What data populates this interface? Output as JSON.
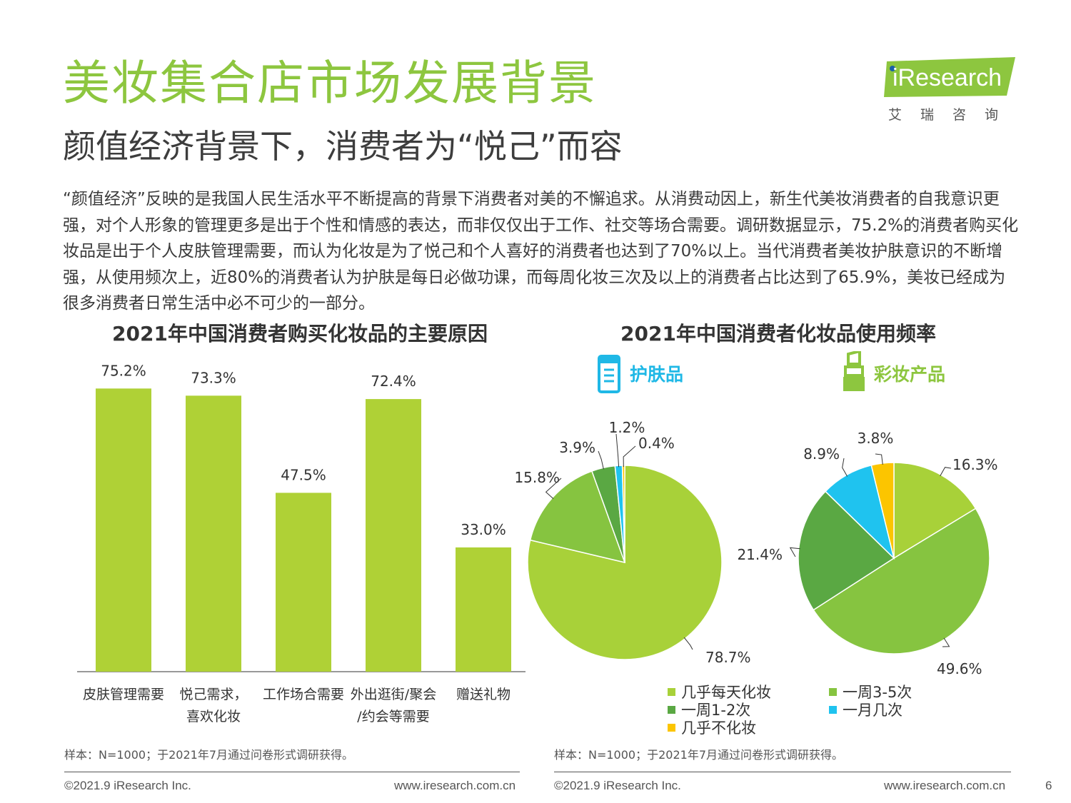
{
  "page": {
    "title": "美妆集合店市场发展背景",
    "subtitle": "颜值经济背景下，消费者为“悦己”而容",
    "paragraph": "“颜值经济”反映的是我国人民生活水平不断提高的背景下消费者对美的不懈追求。从消费动因上，新生代美妆消费者的自我意识更强，对个人形象的管理更多是出于个性和情感的表达，而非仅仅出于工作、社交等场合需要。调研数据显示，75.2%的消费者购买化妆品是出于个人皮肤管理需要，而认为化妆是为了悦己和个人喜好的消费者也达到了70%以上。当代消费者美妆护肤意识的不断增强，从使用频次上，近80%的消费者认为护肤是每日必做功课，而每周化妆三次及以上的消费者占比达到了65.9%，美妆已经成为很多消费者日常生活中必不可少的一部分。",
    "page_number": "6"
  },
  "logo": {
    "name": "iResearch",
    "sub": "艾瑞咨询"
  },
  "left": {
    "title": "2021年中国消费者购买化妆品的主要原因",
    "footnote": "样本：N=1000；于2021年7月通过问卷形式调研获得。",
    "copyright": "©2021.9 iResearch Inc.",
    "url": "www.iresearch.com.cn"
  },
  "right": {
    "title": "2021年中国消费者化妆品使用频率",
    "skincare_label": "护肤品",
    "makeup_label": "彩妆产品",
    "footnote": "样本：N=1000；于2021年7月通过问卷形式调研获得。",
    "copyright": "©2021.9 iResearch Inc.",
    "url": "www.iresearch.com.cn"
  },
  "colors": {
    "title_green": "#8dc63f",
    "bar": "#afd136",
    "skincare_icon": "#1fb8e6",
    "makeup_icon": "#8dc63f"
  },
  "chart_data": [
    {
      "type": "bar",
      "title": "2021年中国消费者购买化妆品的主要原因",
      "categories": [
        [
          "皮肤管理需要"
        ],
        [
          "悦己需求，",
          "喜欢化妆"
        ],
        [
          "工作场合需要"
        ],
        [
          "外出逛街/聚会",
          "/约会等需要"
        ],
        [
          "赠送礼物"
        ]
      ],
      "values": [
        75.2,
        73.3,
        47.5,
        72.4,
        33.0
      ],
      "value_labels": [
        "75.2%",
        "73.3%",
        "47.5%",
        "72.4%",
        "33.0%"
      ],
      "ylim": [
        0,
        80
      ],
      "grid": false
    },
    {
      "type": "pie",
      "name": "护肤品",
      "slices": [
        {
          "label": "几乎每天化妆",
          "value": 78.7,
          "value_label": "78.7%",
          "color": "#a8d139"
        },
        {
          "label": "一周3-5次",
          "value": 15.8,
          "value_label": "15.8%",
          "color": "#86c440"
        },
        {
          "label": "一周1-2次",
          "value": 3.9,
          "value_label": "3.9%",
          "color": "#5aa843"
        },
        {
          "label": "一月几次",
          "value": 1.2,
          "value_label": "1.2%",
          "color": "#1fc3ef"
        },
        {
          "label": "几乎不化妆",
          "value": 0.4,
          "value_label": "0.4%",
          "color": "#fcc500"
        }
      ]
    },
    {
      "type": "pie",
      "name": "彩妆产品",
      "slices": [
        {
          "label": "几乎每天化妆",
          "value": 16.3,
          "value_label": "16.3%",
          "color": "#a8d139"
        },
        {
          "label": "一周3-5次",
          "value": 49.6,
          "value_label": "49.6%",
          "color": "#86c440"
        },
        {
          "label": "一周1-2次",
          "value": 21.4,
          "value_label": "21.4%",
          "color": "#5aa843"
        },
        {
          "label": "一月几次",
          "value": 8.9,
          "value_label": "8.9%",
          "color": "#1fc3ef"
        },
        {
          "label": "几乎不化妆",
          "value": 3.8,
          "value_label": "3.8%",
          "color": "#fcc500"
        }
      ],
      "legend": [
        "几乎每天化妆",
        "一周3-5次",
        "一周1-2次",
        "一月几次",
        "几乎不化妆"
      ],
      "legend_position": "bottom"
    }
  ]
}
